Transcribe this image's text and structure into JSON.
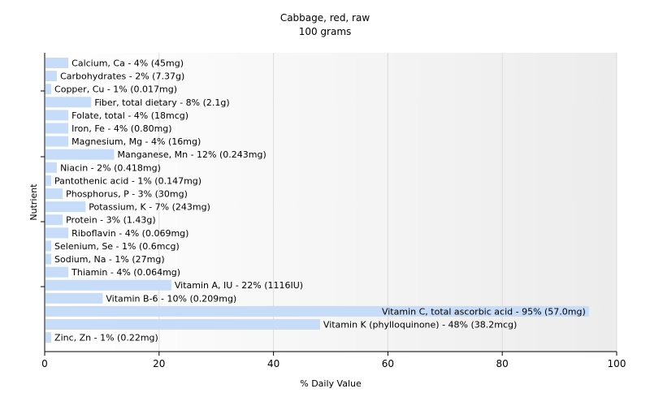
{
  "chart_data": {
    "type": "bar",
    "orientation": "horizontal",
    "title": "Cabbage, red, raw",
    "subtitle": "100 grams",
    "xlabel": "% Daily Value",
    "ylabel": "Nutrient",
    "xlim": [
      0,
      100
    ],
    "xticks": [
      0,
      20,
      40,
      60,
      80,
      100
    ],
    "grid": true,
    "bar_color": "#c6dcf8",
    "categories": [
      "Calcium, Ca",
      "Carbohydrates",
      "Copper, Cu",
      "Fiber, total dietary",
      "Folate, total",
      "Iron, Fe",
      "Magnesium, Mg",
      "Manganese, Mn",
      "Niacin",
      "Pantothenic acid",
      "Phosphorus, P",
      "Potassium, K",
      "Protein",
      "Riboflavin",
      "Selenium, Se",
      "Sodium, Na",
      "Thiamin",
      "Vitamin A, IU",
      "Vitamin B-6",
      "Vitamin C, total ascorbic acid",
      "Vitamin K (phylloquinone)",
      "Zinc, Zn"
    ],
    "values": [
      4,
      2,
      1,
      8,
      4,
      4,
      4,
      12,
      2,
      1,
      3,
      7,
      3,
      4,
      1,
      1,
      4,
      22,
      10,
      95,
      48,
      1
    ],
    "labels": [
      "Calcium, Ca - 4% (45mg)",
      "Carbohydrates - 2% (7.37g)",
      "Copper, Cu - 1% (0.017mg)",
      "Fiber, total dietary - 8% (2.1g)",
      "Folate, total - 4% (18mcg)",
      "Iron, Fe - 4% (0.80mg)",
      "Magnesium, Mg - 4% (16mg)",
      "Manganese, Mn - 12% (0.243mg)",
      "Niacin - 2% (0.418mg)",
      "Pantothenic acid - 1% (0.147mg)",
      "Phosphorus, P - 3% (30mg)",
      "Potassium, K - 7% (243mg)",
      "Protein - 3% (1.43g)",
      "Riboflavin - 4% (0.069mg)",
      "Selenium, Se - 1% (0.6mcg)",
      "Sodium, Na - 1% (27mg)",
      "Thiamin - 4% (0.064mg)",
      "Vitamin A, IU - 22% (1116IU)",
      "Vitamin B-6 - 10% (0.209mg)",
      "Vitamin C, total ascorbic acid - 95% (57.0mg)",
      "Vitamin K (phylloquinone) - 48% (38.2mcg)",
      "Zinc, Zn - 1% (0.22mg)"
    ]
  }
}
